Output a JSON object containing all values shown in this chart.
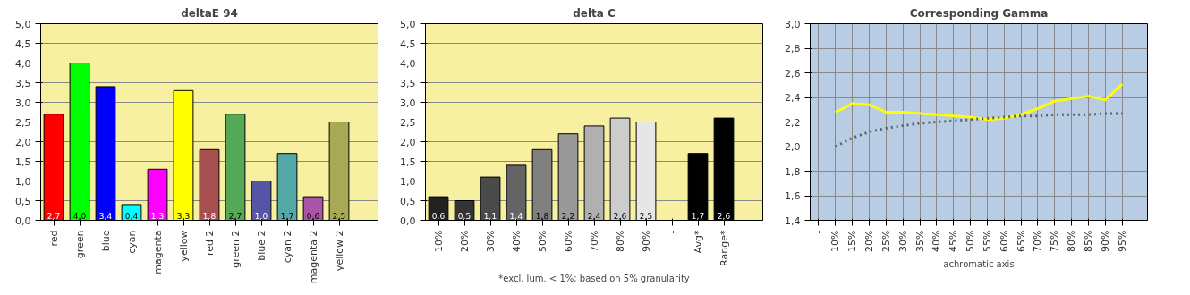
{
  "chart_data": [
    {
      "type": "bar",
      "title": "deltaE 94",
      "categories": [
        "red",
        "green",
        "blue",
        "cyan",
        "magenta",
        "yellow",
        "red 2",
        "green 2",
        "blue 2",
        "cyan 2",
        "magenta 2",
        "yellow 2"
      ],
      "values": [
        2.7,
        4.0,
        3.4,
        0.4,
        1.3,
        3.3,
        1.8,
        2.7,
        1.0,
        1.7,
        0.6,
        2.5
      ],
      "colors": [
        "#ff0000",
        "#00ff00",
        "#0000ff",
        "#00ffff",
        "#ff00ff",
        "#ffff00",
        "#a85050",
        "#55a855",
        "#5555a8",
        "#55a8a8",
        "#a855a8",
        "#a8a855"
      ],
      "value_labels": [
        "2,7",
        "4,0",
        "3,4",
        "0,4",
        "1,3",
        "3,3",
        "1,8",
        "2,7",
        "1,0",
        "1,7",
        "0,6",
        "2,5"
      ],
      "ylim": [
        0,
        5
      ],
      "yticks": [
        {
          "value": 0,
          "label": "0,0"
        },
        {
          "value": 0.5,
          "label": "0,5"
        },
        {
          "value": 1,
          "label": "1,0"
        },
        {
          "value": 1.5,
          "label": "1,5"
        },
        {
          "value": 2,
          "label": "2,0"
        },
        {
          "value": 2.5,
          "label": "2,5"
        },
        {
          "value": 3,
          "label": "3,0"
        },
        {
          "value": 3.5,
          "label": "3,5"
        },
        {
          "value": 4,
          "label": "4,0"
        },
        {
          "value": 4.5,
          "label": "4,5"
        },
        {
          "value": 5,
          "label": "5,0"
        }
      ],
      "grid": "y"
    },
    {
      "type": "bar",
      "title": "delta C",
      "xlabel": "*excl. lum. < 1%; based on 5% granularity",
      "categories": [
        "10%",
        "20%",
        "30%",
        "40%",
        "50%",
        "60%",
        "70%",
        "80%",
        "90%",
        "-",
        "Avg*",
        "Range*"
      ],
      "values": [
        0.6,
        0.5,
        1.1,
        1.4,
        1.8,
        2.2,
        2.4,
        2.6,
        2.5,
        null,
        1.7,
        2.6
      ],
      "colors": [
        "#222222",
        "#333333",
        "#4a4a4a",
        "#646464",
        "#808080",
        "#999999",
        "#b0b0b0",
        "#cccccc",
        "#e6e6e6",
        "#000000",
        "#000000",
        "#000000"
      ],
      "value_labels": [
        "0,6",
        "0,5",
        "1,1",
        "1,4",
        "1,8",
        "2,2",
        "2,4",
        "2,6",
        "2,5",
        null,
        "1,7",
        "2,6"
      ],
      "ylim": [
        0,
        5
      ],
      "yticks": [
        {
          "value": 0,
          "label": "0,0"
        },
        {
          "value": 0.5,
          "label": "0,5"
        },
        {
          "value": 1,
          "label": "1,0"
        },
        {
          "value": 1.5,
          "label": "1,5"
        },
        {
          "value": 2,
          "label": "2,0"
        },
        {
          "value": 2.5,
          "label": "2,5"
        },
        {
          "value": 3,
          "label": "3,0"
        },
        {
          "value": 3.5,
          "label": "3,5"
        },
        {
          "value": 4,
          "label": "4,0"
        },
        {
          "value": 4.5,
          "label": "4,5"
        },
        {
          "value": 5,
          "label": "5,0"
        }
      ],
      "grid": "y"
    },
    {
      "type": "line",
      "title": "Corresponding Gamma",
      "xlabel": "achromatic axis",
      "categories": [
        "-",
        "10%",
        "15%",
        "20%",
        "25%",
        "30%",
        "35%",
        "40%",
        "45%",
        "50%",
        "55%",
        "60%",
        "65%",
        "70%",
        "75%",
        "80%",
        "85%",
        "90%",
        "95%"
      ],
      "series": [
        {
          "color": "#ffff00",
          "line_style": "solid",
          "values": [
            null,
            2.28,
            2.35,
            2.34,
            2.28,
            2.28,
            2.27,
            2.26,
            2.25,
            2.24,
            2.22,
            2.23,
            2.26,
            2.31,
            2.37,
            2.39,
            2.41,
            2.38,
            2.51
          ]
        },
        {
          "color": "#606060",
          "line_style": "dotted",
          "values": [
            null,
            2.0,
            2.07,
            2.12,
            2.15,
            2.17,
            2.19,
            2.2,
            2.21,
            2.22,
            2.23,
            2.24,
            2.25,
            2.25,
            2.26,
            2.26,
            2.26,
            2.27,
            2.27
          ]
        }
      ],
      "ylim": [
        1.4,
        3.0
      ],
      "yticks": [
        {
          "value": 1.4,
          "label": "1,4"
        },
        {
          "value": 1.6,
          "label": "1,6"
        },
        {
          "value": 1.8,
          "label": "1,8"
        },
        {
          "value": 2.0,
          "label": "2,0"
        },
        {
          "value": 2.2,
          "label": "2,2"
        },
        {
          "value": 2.4,
          "label": "2,4"
        },
        {
          "value": 2.6,
          "label": "2,6"
        },
        {
          "value": 2.8,
          "label": "2,8"
        },
        {
          "value": 3.0,
          "label": "3,0"
        }
      ],
      "grid": true
    }
  ]
}
